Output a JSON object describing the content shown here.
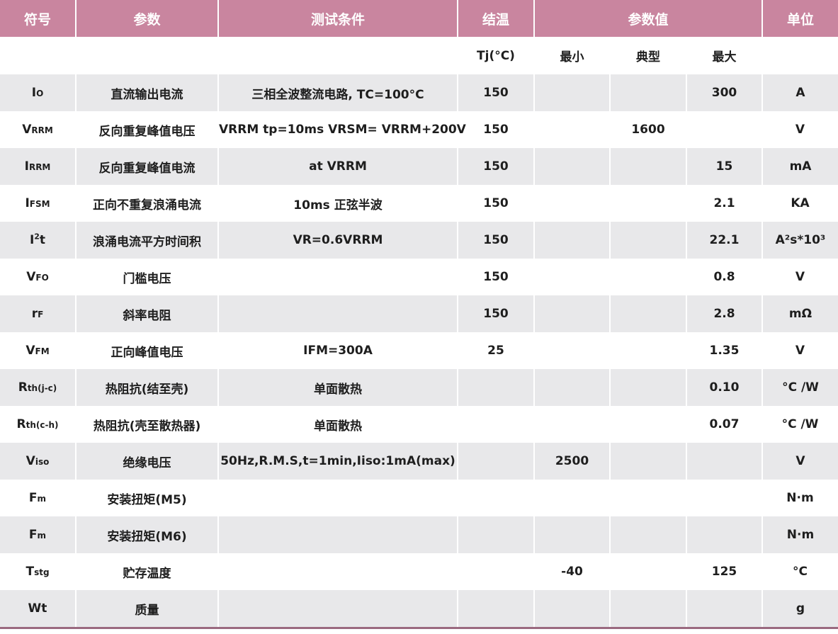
{
  "headers": {
    "symbol": "符号",
    "param": "参数",
    "condition": "测试条件",
    "junction_temp": "结温",
    "param_values": "参数值",
    "unit": "单位"
  },
  "subheaders": {
    "tj": "Tj(°C)",
    "min": "最小",
    "typ": "典型",
    "max": "最大"
  },
  "rows": [
    {
      "sym_main": "I",
      "sym_sub": "O",
      "sym_sup": "",
      "sym_tail": "",
      "param": "直流输出电流",
      "condition": "三相全波整流电路, TC=100°C",
      "tj": "150",
      "min": "",
      "typ": "",
      "max": "300",
      "unit": "A"
    },
    {
      "sym_main": "V",
      "sym_sub": "RRM",
      "sym_sup": "",
      "sym_tail": "",
      "param": "反向重复峰值电压",
      "condition": "VRRM tp=10ms VRSM= VRRM+200V",
      "tj": "150",
      "min": "",
      "typ": "1600",
      "max": "",
      "unit": "V"
    },
    {
      "sym_main": "I",
      "sym_sub": "RRM",
      "sym_sup": "",
      "sym_tail": "",
      "param": "反向重复峰值电流",
      "condition": "at VRRM",
      "tj": "150",
      "min": "",
      "typ": "",
      "max": "15",
      "unit": "mA"
    },
    {
      "sym_main": "I",
      "sym_sub": "FSM",
      "sym_sup": "",
      "sym_tail": "",
      "param": "正向不重复浪涌电流",
      "condition": "10ms 正弦半波",
      "tj": "150",
      "min": "",
      "typ": "",
      "max": "2.1",
      "unit": "KA"
    },
    {
      "sym_main": "I",
      "sym_sub": "",
      "sym_sup": "2",
      "sym_tail": "t",
      "param": "浪涌电流平方时间积",
      "condition": "VR=0.6VRRM",
      "tj": "150",
      "min": "",
      "typ": "",
      "max": "22.1",
      "unit": "A²s*10³"
    },
    {
      "sym_main": "V",
      "sym_sub": "FO",
      "sym_sup": "",
      "sym_tail": "",
      "param": "门槛电压",
      "condition": "",
      "tj": "150",
      "min": "",
      "typ": "",
      "max": "0.8",
      "unit": "V"
    },
    {
      "sym_main": "r",
      "sym_sub": "F",
      "sym_sup": "",
      "sym_tail": "",
      "param": "斜率电阻",
      "condition": "",
      "tj": "150",
      "min": "",
      "typ": "",
      "max": "2.8",
      "unit": "mΩ"
    },
    {
      "sym_main": "V",
      "sym_sub": "FM",
      "sym_sup": "",
      "sym_tail": "",
      "param": "正向峰值电压",
      "condition": "IFM=300A",
      "tj": "25",
      "min": "",
      "typ": "",
      "max": "1.35",
      "unit": "V"
    },
    {
      "sym_main": "R",
      "sym_sub": "th(j-c)",
      "sym_sup": "",
      "sym_tail": "",
      "param": "热阻抗(结至壳)",
      "condition": "单面散热",
      "tj": "",
      "min": "",
      "typ": "",
      "max": "0.10",
      "unit": "°C /W"
    },
    {
      "sym_main": "R",
      "sym_sub": "th(c-h)",
      "sym_sup": "",
      "sym_tail": "",
      "param": "热阻抗(壳至散热器)",
      "condition": "单面散热",
      "tj": "",
      "min": "",
      "typ": "",
      "max": "0.07",
      "unit": "°C /W"
    },
    {
      "sym_main": "V",
      "sym_sub": "iso",
      "sym_sup": "",
      "sym_tail": "",
      "param": "绝缘电压",
      "condition": "50Hz,R.M.S,t=1min,Iiso:1mA(max)",
      "tj": "",
      "min": "2500",
      "typ": "",
      "max": "",
      "unit": "V"
    },
    {
      "sym_main": "F",
      "sym_sub": "m",
      "sym_sup": "",
      "sym_tail": "",
      "param": "安装扭矩(M5)",
      "condition": "",
      "tj": "",
      "min": "",
      "typ": "",
      "max": "",
      "unit": "N·m"
    },
    {
      "sym_main": "F",
      "sym_sub": "m",
      "sym_sup": "",
      "sym_tail": "",
      "param": "安装扭矩(M6)",
      "condition": "",
      "tj": "",
      "min": "",
      "typ": "",
      "max": "",
      "unit": "N·m"
    },
    {
      "sym_main": "T",
      "sym_sub": "stg",
      "sym_sup": "",
      "sym_tail": "",
      "param": "贮存温度",
      "condition": "",
      "tj": "",
      "min": "-40",
      "typ": "",
      "max": "125",
      "unit": "°C"
    },
    {
      "sym_main": "Wt",
      "sym_sub": "",
      "sym_sup": "",
      "sym_tail": "",
      "param": "质量",
      "condition": "",
      "tj": "",
      "min": "",
      "typ": "",
      "max": "",
      "unit": "g"
    }
  ],
  "colors": {
    "header_bg": "#c9859f",
    "row_shade": "#e8e8ea",
    "bottom_rule": "#9a6a80"
  }
}
